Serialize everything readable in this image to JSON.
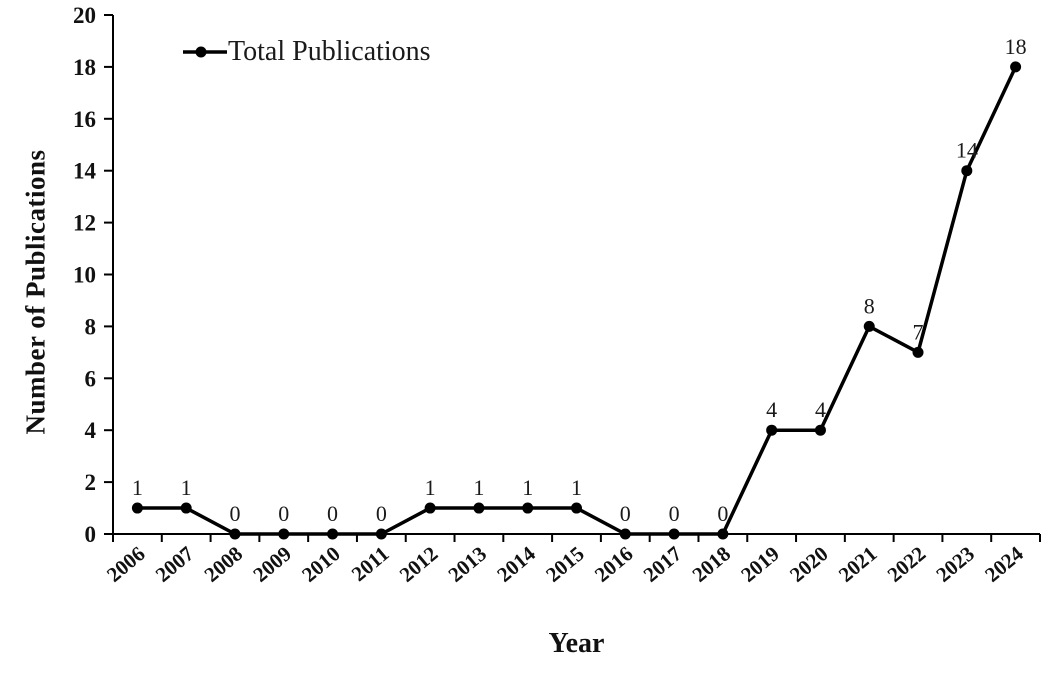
{
  "chart_data": {
    "type": "line",
    "title": "",
    "categories": [
      "2006",
      "2007",
      "2008",
      "2009",
      "2010",
      "2011",
      "2012",
      "2013",
      "2014",
      "2015",
      "2016",
      "2017",
      "2018",
      "2019",
      "2020",
      "2021",
      "2022",
      "2023",
      "2024"
    ],
    "values": [
      1,
      1,
      0,
      0,
      0,
      0,
      1,
      1,
      1,
      1,
      0,
      0,
      0,
      4,
      4,
      8,
      7,
      14,
      18
    ],
    "series_name": "Total Publications",
    "xlabel": "Year",
    "ylabel": "Number of Publications",
    "ylim": [
      0,
      20
    ],
    "ytick_step": 2,
    "grid": false,
    "data_labels": true,
    "legend_position": "top-left-inside",
    "line_color": "#000000",
    "marker": "filled-circle",
    "background_color": "#ffffff"
  }
}
